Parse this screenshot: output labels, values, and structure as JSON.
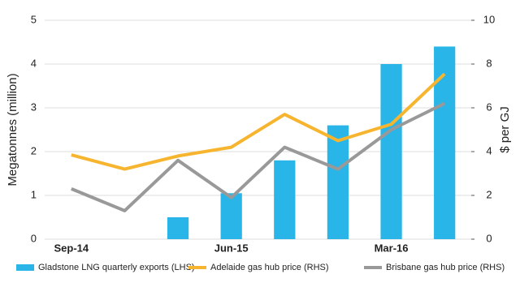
{
  "chart_data": {
    "type": "bar_line",
    "categories": [
      "Sep-14",
      null,
      null,
      "Jun-15",
      null,
      null,
      "Mar-16",
      null
    ],
    "series": [
      {
        "name": "Gladstone LNG quarterly exports (LHS)",
        "type": "bar",
        "color": "#29b5e8",
        "values": [
          null,
          null,
          0.5,
          1.05,
          1.8,
          2.6,
          4.0,
          4.4
        ]
      },
      {
        "name": "Adelaide gas hub price (RHS)",
        "type": "line",
        "axis": "y2",
        "color": "#f7b52f",
        "values": [
          3.85,
          3.2,
          3.8,
          4.2,
          5.7,
          4.5,
          5.25,
          7.55
        ]
      },
      {
        "name": "Brisbane gas hub price (RHS)",
        "type": "line",
        "axis": "y2",
        "color": "#999999",
        "values": [
          2.3,
          1.3,
          3.6,
          1.9,
          4.2,
          3.2,
          5.0,
          6.2
        ]
      }
    ],
    "ylabel": "Megatonnes (million)",
    "y2label": "$ per GJ",
    "ylim": [
      0,
      5
    ],
    "yticks": [
      0,
      1,
      2,
      3,
      4,
      5
    ],
    "y2lim": [
      0,
      10
    ],
    "y2ticks": [
      0,
      2,
      4,
      6,
      8,
      10
    ],
    "grid": true,
    "legend": "bottom"
  }
}
